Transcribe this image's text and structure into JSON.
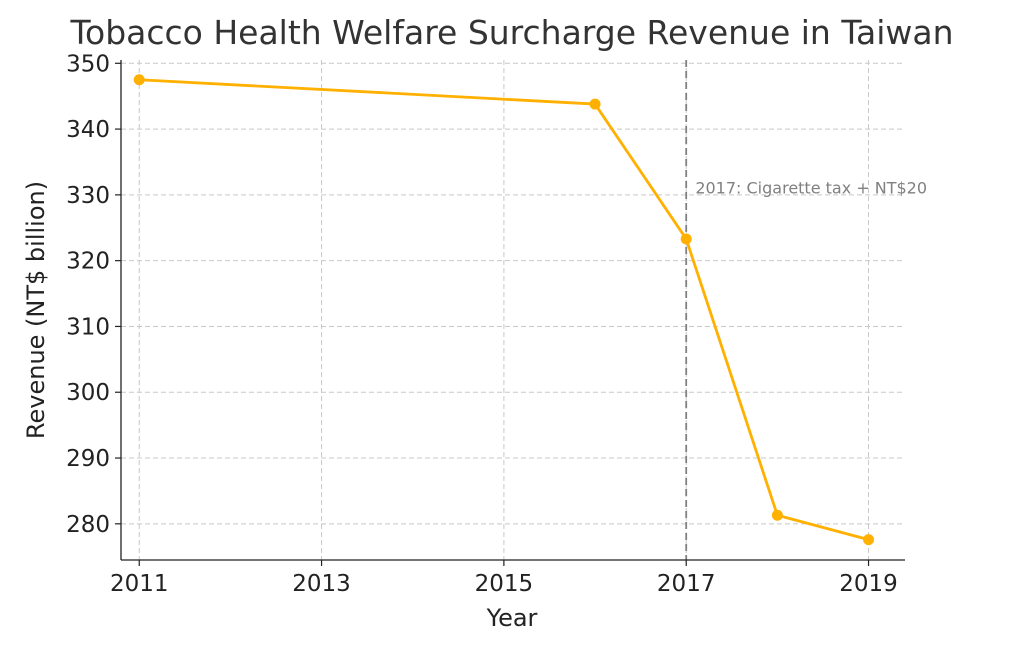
{
  "chart_data": {
    "type": "line",
    "title": "Tobacco Health Welfare Surcharge Revenue in Taiwan",
    "xlabel": "Year",
    "ylabel": "Revenue (NT$ billion)",
    "xlim": [
      2010.8,
      2019.4
    ],
    "ylim": [
      274.5,
      350.5
    ],
    "x_ticks": [
      2011,
      2013,
      2015,
      2017,
      2019
    ],
    "y_ticks": [
      280,
      290,
      300,
      310,
      320,
      330,
      340,
      350
    ],
    "grid": true,
    "series": [
      {
        "color": "#FFB000",
        "points": [
          {
            "x": 2011,
            "y": 347.5
          },
          {
            "x": 2016,
            "y": 343.8
          },
          {
            "x": 2017,
            "y": 323.3
          },
          {
            "x": 2018,
            "y": 281.3
          },
          {
            "x": 2019,
            "y": 277.6
          }
        ]
      }
    ],
    "annotations": [
      {
        "type": "vline",
        "x": 2017,
        "color": "#808080",
        "style": "dashed"
      },
      {
        "type": "text",
        "x": 2017.1,
        "y": 330.2,
        "text": "2017: Cigarette tax + NT$20",
        "color": "#808080"
      }
    ]
  }
}
